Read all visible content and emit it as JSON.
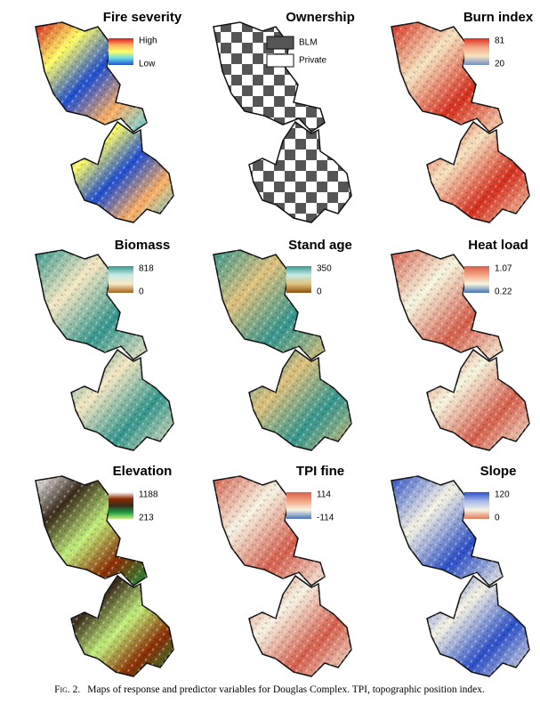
{
  "panels": [
    {
      "title": "Fire severity",
      "legend": {
        "top": "High",
        "bottom": "Low"
      },
      "ramp": [
        "#d7191c",
        "#fdae61",
        "#ffff66",
        "#66d9e8",
        "#1f4fd1"
      ]
    },
    {
      "title": "Ownership",
      "items": [
        {
          "label": "BLM",
          "color": "#555555"
        },
        {
          "label": "Private",
          "color": "#ffffff"
        }
      ]
    },
    {
      "title": "Burn index",
      "legend": {
        "top": "81",
        "bottom": "20"
      },
      "ramp": [
        "#d7301f",
        "#f4a582",
        "#f7e4c0",
        "#6f8fc8"
      ]
    },
    {
      "title": "Biomass",
      "legend": {
        "top": "818",
        "bottom": "0"
      },
      "ramp": [
        "#35978f",
        "#c7eae5",
        "#f6e8c3",
        "#a6611a"
      ]
    },
    {
      "title": "Stand age",
      "legend": {
        "top": "350",
        "bottom": "0"
      },
      "ramp": [
        "#35978f",
        "#c7eae5",
        "#dfc27d",
        "#8c510a"
      ]
    },
    {
      "title": "Heat load",
      "legend": {
        "top": "1.07",
        "bottom": "0.22"
      },
      "ramp": [
        "#d6604d",
        "#f4a582",
        "#f7f7e0",
        "#4575b4"
      ]
    },
    {
      "title": "Elevation",
      "legend": {
        "top": "1188",
        "bottom": "213"
      },
      "ramp": [
        "#ffffff",
        "#8c2d04",
        "#3a2a1a",
        "#1a9641",
        "#c2f07a"
      ]
    },
    {
      "title": "TPI fine",
      "legend": {
        "top": "114",
        "bottom": "-114"
      },
      "ramp": [
        "#d6604d",
        "#f4a582",
        "#f7f4e4",
        "#4575b4"
      ]
    },
    {
      "title": "Slope",
      "legend": {
        "top": "120",
        "bottom": "0"
      },
      "ramp": [
        "#2b50c8",
        "#a7b7e8",
        "#f7f4e4",
        "#e07b5a"
      ]
    }
  ],
  "caption": {
    "label": "Fig. 2.",
    "text": "Maps of response and predictor variables for Douglas Complex. TPI, topographic position index."
  }
}
